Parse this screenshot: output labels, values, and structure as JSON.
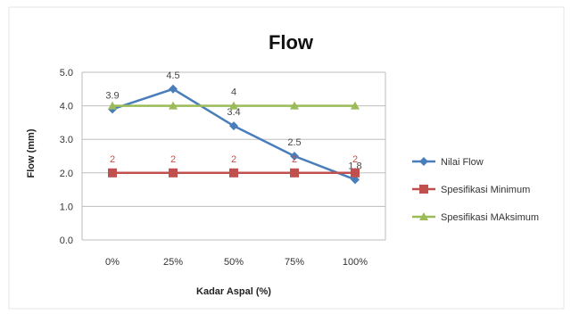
{
  "chart_data": {
    "type": "line",
    "title": "Flow",
    "xlabel": "Kadar Aspal (%)",
    "ylabel": "Flow (mm)",
    "categories": [
      "0%",
      "25%",
      "50%",
      "75%",
      "100%"
    ],
    "ylim": [
      0,
      5
    ],
    "yticks": [
      "0.0",
      "1.0",
      "2.0",
      "3.0",
      "4.0",
      "5.0"
    ],
    "grid": "horizontal",
    "legend_position": "right",
    "series": [
      {
        "name": "Nilai Flow",
        "values": [
          3.9,
          4.5,
          3.4,
          2.5,
          1.8
        ],
        "labels": [
          "3.9",
          "4.5",
          "3.4",
          "2.5",
          "1.8"
        ],
        "color": "#4a7ebb",
        "marker": "diamond"
      },
      {
        "name": "Spesifikasi Minimum",
        "values": [
          2,
          2,
          2,
          2,
          2
        ],
        "labels": [
          "2",
          "2",
          "2",
          "2",
          "2"
        ],
        "color": "#c0504d",
        "marker": "square"
      },
      {
        "name": "Spesifikasi MAksimum",
        "values": [
          4,
          4,
          4,
          4,
          4
        ],
        "labels": [
          "",
          "",
          "4",
          "",
          ""
        ],
        "color": "#9bbb59",
        "marker": "triangle"
      }
    ]
  }
}
